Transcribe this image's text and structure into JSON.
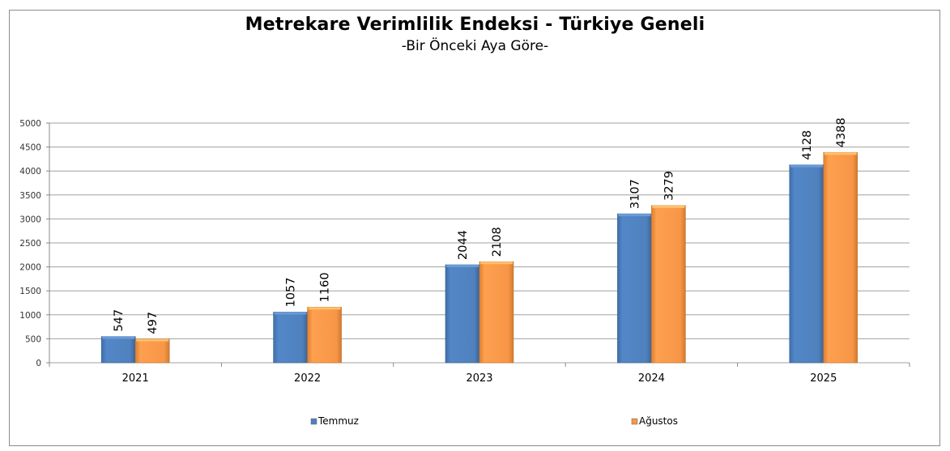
{
  "title": "Metrekare Verimlilik Endeksi - Türkiye Geneli",
  "subtitle": "-Bir Önceki Aya Göre-",
  "legend": {
    "items": [
      {
        "label": "Temmuz",
        "color": "#4f81bd"
      },
      {
        "label": "Ağustos",
        "color": "#f79646"
      }
    ]
  },
  "chart_data": {
    "type": "bar",
    "title": "Metrekare Verimlilik Endeksi - Türkiye Geneli",
    "subtitle": "-Bir Önceki Aya Göre-",
    "categories": [
      "2021",
      "2022",
      "2023",
      "2024",
      "2025"
    ],
    "series": [
      {
        "name": "Temmuz",
        "color": "#4f81bd",
        "values": [
          547,
          1057,
          2044,
          3107,
          4128
        ]
      },
      {
        "name": "Ağustos",
        "color": "#f79646",
        "values": [
          497,
          1160,
          2108,
          3279,
          4388
        ]
      }
    ],
    "xlabel": "",
    "ylabel": "",
    "ylim": [
      0,
      5000
    ],
    "yticks": [
      0,
      500,
      1000,
      1500,
      2000,
      2500,
      3000,
      3500,
      4000,
      4500,
      5000
    ],
    "grid": true,
    "data_labels": true,
    "data_label_rotation": -90,
    "legend_position": "bottom"
  }
}
